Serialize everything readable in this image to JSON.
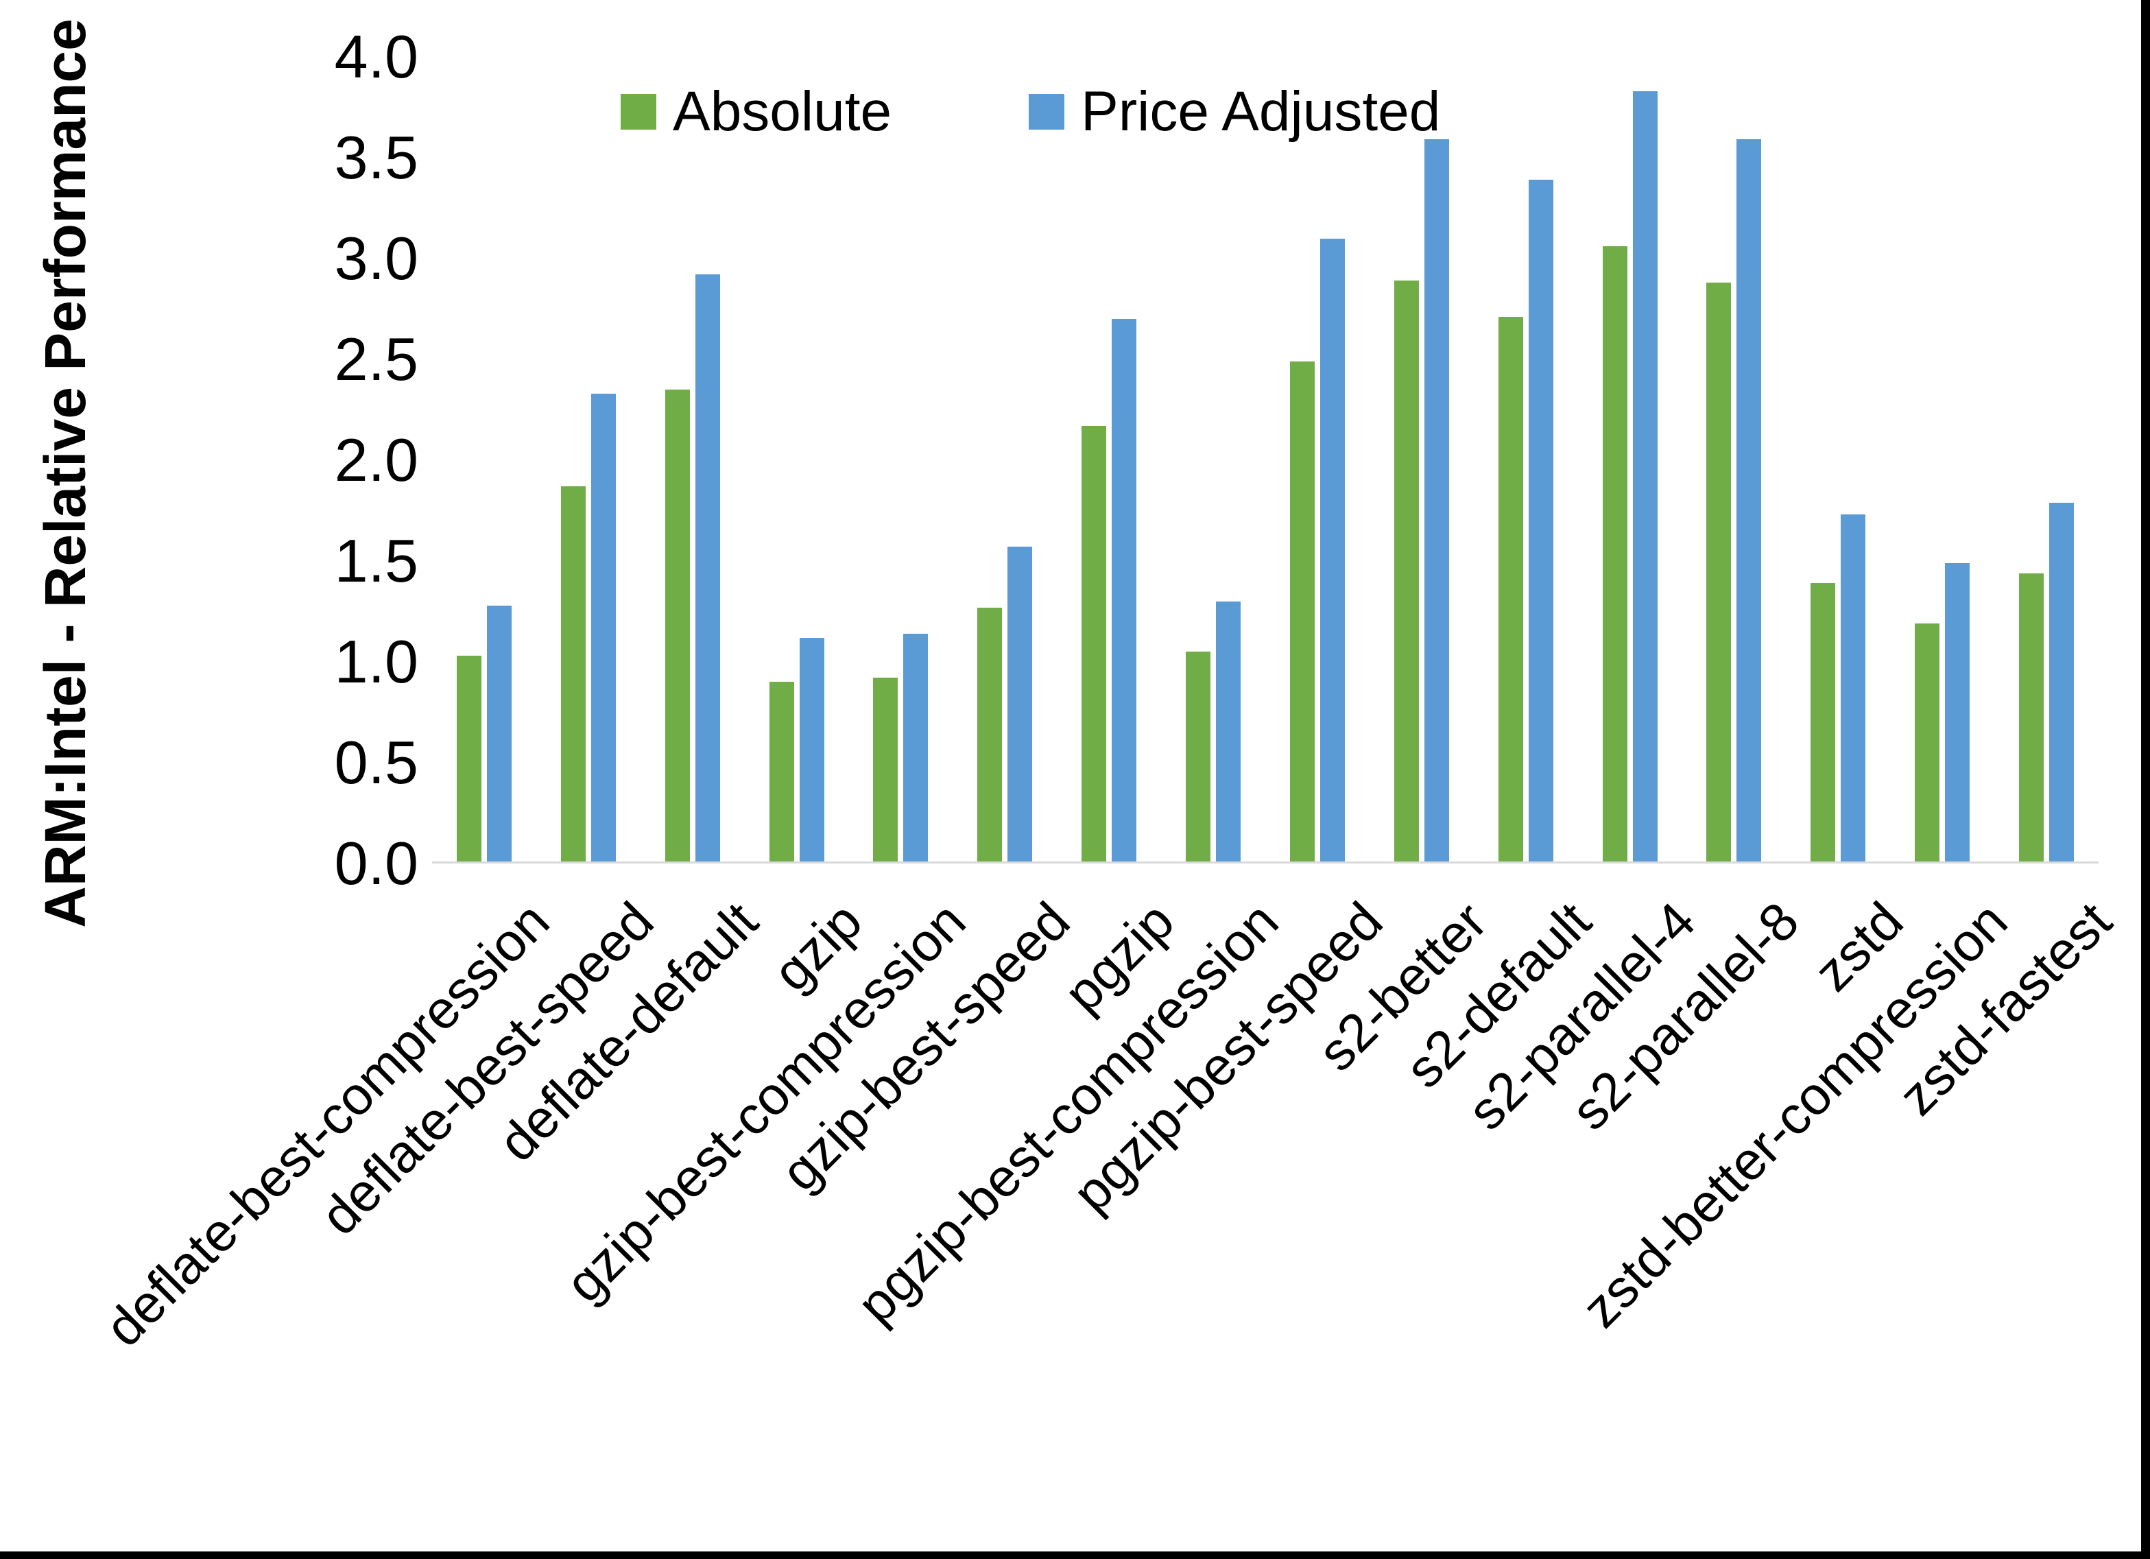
{
  "chart_data": {
    "type": "bar",
    "title": "",
    "xlabel": "",
    "ylabel": "ARM:Intel - Relative Performance",
    "ylim": [
      0,
      4
    ],
    "ytick_step": 0.5,
    "ytick_labels": [
      "0.0",
      "0.5",
      "1.0",
      "1.5",
      "2.0",
      "2.5",
      "3.0",
      "3.5",
      "4.0"
    ],
    "grid": false,
    "legend_position": "top-center",
    "categories": [
      "deflate-best-compression",
      "deflate-best-speed",
      "deflate-default",
      "gzip",
      "gzip-best-compression",
      "gzip-best-speed",
      "pgzip",
      "pgzip-best-compression",
      "pgzip-best-speed",
      "s2-better",
      "s2-default",
      "s2-parallel-4",
      "s2-parallel-8",
      "zstd",
      "zstd-better-compression",
      "zstd-fastest"
    ],
    "series": [
      {
        "name": "Absolute",
        "color": "#70AD47",
        "values": [
          1.02,
          1.86,
          2.34,
          0.89,
          0.91,
          1.26,
          2.16,
          1.04,
          2.48,
          2.88,
          2.7,
          3.05,
          2.87,
          1.38,
          1.18,
          1.43
        ]
      },
      {
        "name": "Price Adjusted",
        "color": "#5B9BD5",
        "values": [
          1.27,
          2.32,
          2.91,
          1.11,
          1.13,
          1.56,
          2.69,
          1.29,
          3.09,
          3.58,
          3.38,
          3.82,
          3.58,
          1.72,
          1.48,
          1.78
        ]
      }
    ]
  },
  "colors": {
    "background": "#FFFFFF",
    "axis_line": "#D9D9D9",
    "text": "#000000",
    "border": "#000000"
  }
}
